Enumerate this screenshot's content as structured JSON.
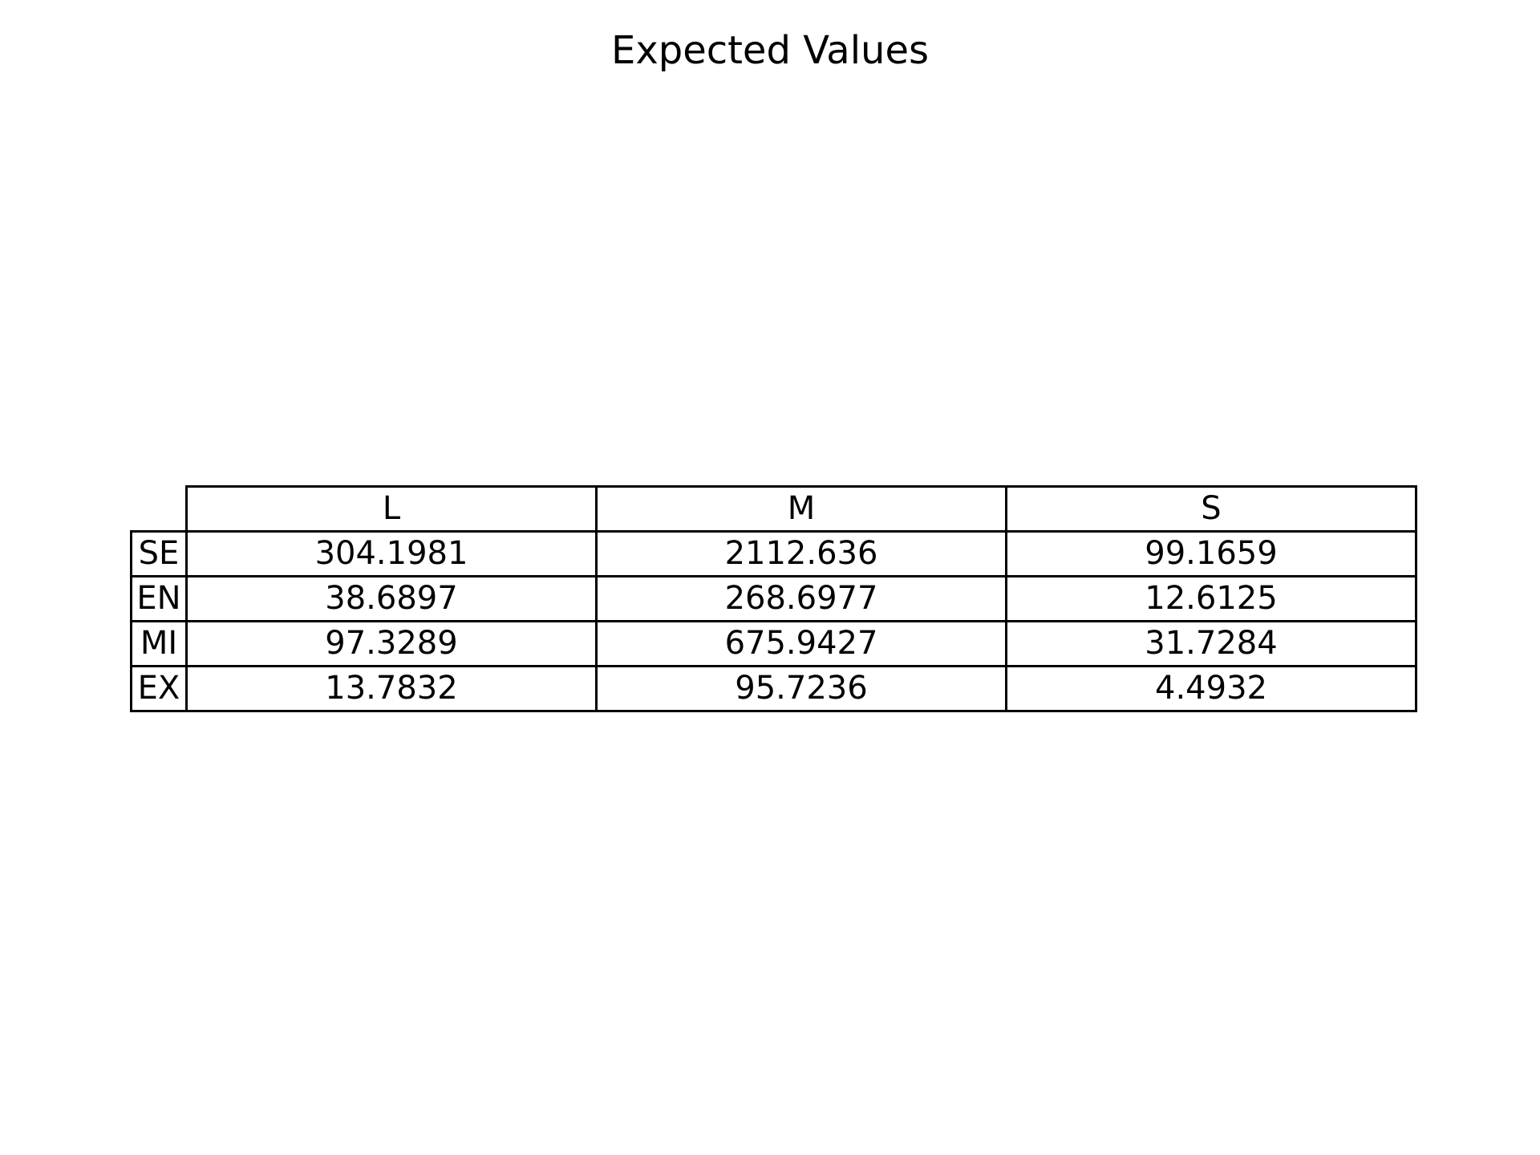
{
  "chart_data": {
    "type": "table",
    "title": "Expected Values",
    "columns": [
      "L",
      "M",
      "S"
    ],
    "rows": [
      {
        "label": "SE",
        "values": [
          "304.1981",
          "2112.636",
          "99.1659"
        ]
      },
      {
        "label": "EN",
        "values": [
          "38.6897",
          "268.6977",
          "12.6125"
        ]
      },
      {
        "label": "MI",
        "values": [
          "97.3289",
          "675.9427",
          "31.7284"
        ]
      },
      {
        "label": "EX",
        "values": [
          "13.7832",
          "95.7236",
          "4.4932"
        ]
      }
    ]
  }
}
